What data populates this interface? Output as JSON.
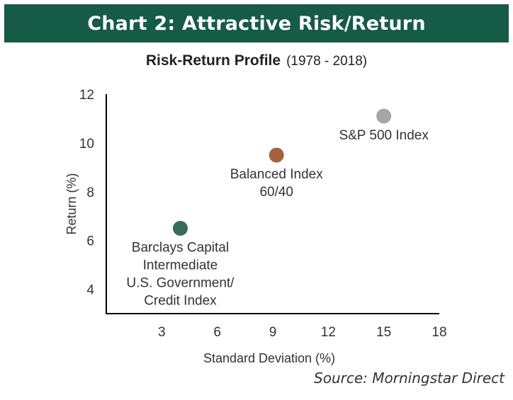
{
  "header": {
    "title": "Chart 2: Attractive Risk/Return",
    "subtitle": "Risk-Return Profile",
    "period": "(1978 - 2018)"
  },
  "source": "Source: Morningstar Direct",
  "chart_data": {
    "type": "scatter",
    "xlabel": "Standard Deviation (%)",
    "ylabel": "Return (%)",
    "xlim": [
      0,
      18
    ],
    "ylim": [
      3,
      12
    ],
    "xticks": [
      3,
      6,
      9,
      12,
      15,
      18
    ],
    "yticks": [
      4,
      6,
      8,
      10,
      12
    ],
    "grid": false,
    "series": [
      {
        "label_lines": [
          "Barclays Capital",
          "Intermediate",
          "U.S. Government/",
          "Credit Index"
        ],
        "x": 4.0,
        "y": 6.5,
        "color": "#3a6b56"
      },
      {
        "label_lines": [
          "Balanced Index",
          "60/40"
        ],
        "x": 9.2,
        "y": 9.5,
        "color": "#a3623c"
      },
      {
        "label_lines": [
          "S&P 500 Index"
        ],
        "x": 15.0,
        "y": 11.1,
        "color": "#a6a6a6"
      }
    ]
  }
}
